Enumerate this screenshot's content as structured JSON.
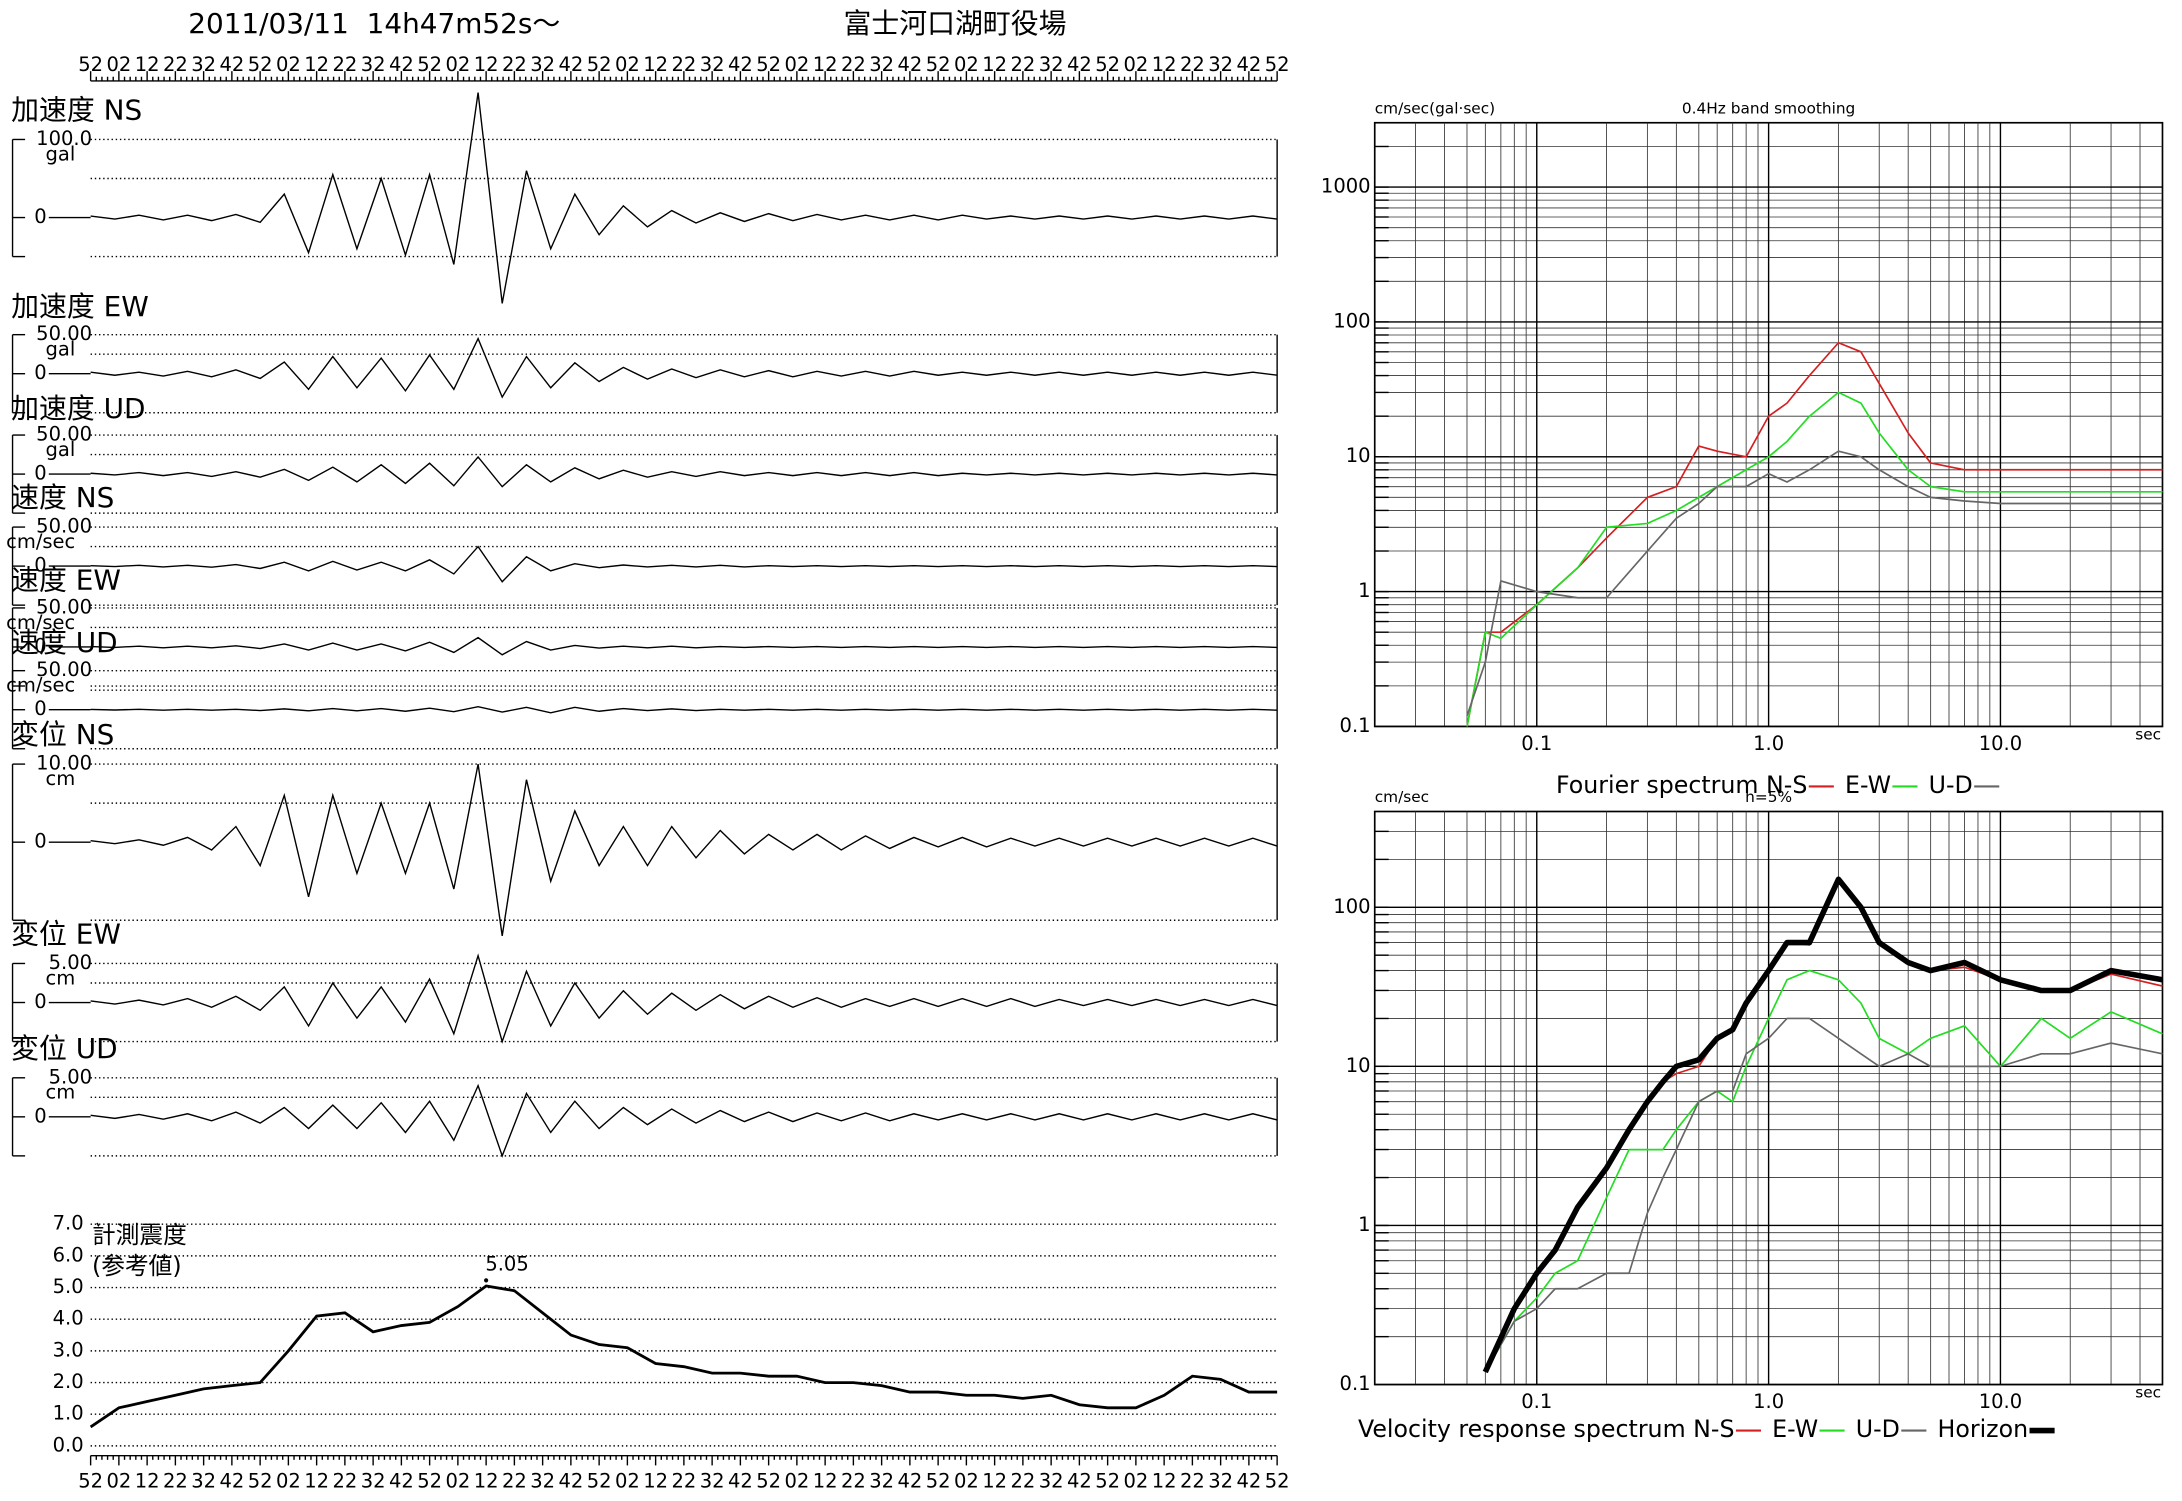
{
  "header": {
    "datetime": "2011/03/11  14h47m52s～",
    "station": "富士河口湖町役場"
  },
  "time_ticks": [
    "52",
    "02",
    "12",
    "22",
    "32",
    "42",
    "52",
    "02",
    "12",
    "22",
    "32",
    "42",
    "52",
    "02",
    "12",
    "22",
    "32",
    "42",
    "52",
    "02",
    "12",
    "22",
    "32",
    "42",
    "52",
    "02",
    "12",
    "22",
    "32",
    "42",
    "52",
    "02",
    "12",
    "22",
    "32",
    "42",
    "52",
    "02",
    "12",
    "22",
    "32",
    "42",
    "52"
  ],
  "traces": [
    {
      "label": "加速度 NS",
      "unit": "gal",
      "yticks": [
        0,
        {
          "value": 100,
          "label": "100.0"
        }
      ],
      "values": [
        2,
        -2,
        3,
        -3,
        3,
        -4,
        4,
        -6,
        30,
        -45,
        55,
        -40,
        50,
        -48,
        55,
        -60,
        160,
        -110,
        60,
        -40,
        30,
        -22,
        15,
        -12,
        9,
        -7,
        6,
        -5,
        5,
        -4,
        4,
        -3,
        3,
        -3,
        3,
        -3,
        3,
        -2,
        2,
        -2,
        2,
        -2,
        2,
        -2,
        2,
        -2,
        2,
        -2,
        2,
        -2
      ]
    },
    {
      "label": "加速度 EW",
      "unit": "gal",
      "yticks": [
        0,
        {
          "value": 50,
          "label": "50.00"
        }
      ],
      "values": [
        2,
        -2,
        2,
        -3,
        3,
        -4,
        5,
        -6,
        15,
        -20,
        22,
        -18,
        20,
        -22,
        24,
        -20,
        45,
        -30,
        22,
        -18,
        14,
        -10,
        8,
        -7,
        6,
        -5,
        5,
        -4,
        4,
        -4,
        3,
        -3,
        3,
        -3,
        3,
        -2,
        2,
        -2,
        2,
        -2,
        2,
        -2,
        2,
        -2,
        2,
        -2,
        2,
        -2,
        2,
        -2
      ]
    },
    {
      "label": "加速度 UD",
      "unit": "gal",
      "yticks": [
        0,
        {
          "value": 50,
          "label": "50.00"
        }
      ],
      "values": [
        1,
        -1,
        2,
        -2,
        2,
        -3,
        3,
        -4,
        6,
        -8,
        9,
        -10,
        12,
        -12,
        14,
        -15,
        22,
        -16,
        12,
        -10,
        8,
        -6,
        5,
        -4,
        3,
        -3,
        3,
        -2,
        2,
        -2,
        2,
        -2,
        2,
        -2,
        2,
        -2,
        1,
        -1,
        1,
        -1,
        1,
        -1,
        1,
        -1,
        1,
        -1,
        1,
        -1,
        1,
        -1
      ]
    },
    {
      "label": "速度 NS",
      "unit": "cm/sec",
      "yticks": [
        0,
        {
          "value": 50,
          "label": "50.00"
        }
      ],
      "values": [
        0.5,
        -0.5,
        1,
        -1,
        1,
        -1.5,
        2,
        -3,
        5,
        -6,
        6,
        -5,
        5,
        -6,
        8,
        -10,
        25,
        -20,
        12,
        -6,
        3,
        -2,
        1.5,
        -1,
        1,
        -1,
        1,
        -1,
        0.5,
        -0.5,
        0.5,
        -0.5,
        0.5,
        -0.5,
        0.5,
        -0.5,
        0.5,
        -0.5,
        0.5,
        -0.5,
        0.5,
        -0.5,
        0.5,
        -0.5,
        0.5,
        -0.5,
        0.5,
        -0.5,
        0.5,
        -0.5
      ]
    },
    {
      "label": "速度 EW",
      "unit": "cm/sec",
      "yticks": [
        0,
        {
          "value": 50,
          "label": "50.00"
        }
      ],
      "values": [
        0.5,
        -0.5,
        1,
        -1,
        1,
        -1,
        1.5,
        -2,
        4,
        -4,
        5,
        -4,
        4,
        -5,
        6,
        -7,
        12,
        -10,
        7,
        -4,
        2,
        -1.5,
        1,
        -1,
        1,
        -1,
        0.5,
        -0.5,
        0.5,
        -0.5,
        0.5,
        -0.5,
        0.5,
        -0.5,
        0.5,
        -0.5,
        0.5,
        -0.5,
        0.5,
        -0.5,
        0.5,
        -0.5,
        0.5,
        -0.5,
        0.5,
        -0.5,
        0.5,
        -0.5,
        0.5,
        -0.5
      ]
    },
    {
      "label": "速度 UD",
      "unit": "cm/sec",
      "yticks": [
        0,
        {
          "value": 50,
          "label": "50.00"
        }
      ],
      "values": [
        0.3,
        -0.3,
        0.5,
        -0.5,
        0.5,
        -0.5,
        0.5,
        -1,
        1,
        -1.5,
        1.5,
        -1.5,
        1.5,
        -2,
        2,
        -2.5,
        4,
        -3,
        3,
        -4,
        3,
        -2,
        1.5,
        -1,
        1,
        -1,
        0.5,
        -0.5,
        0.5,
        -0.5,
        0.5,
        -0.5,
        0.5,
        -0.5,
        0.5,
        -0.5,
        0.5,
        -0.5,
        0.5,
        -0.5,
        0.5,
        -0.5,
        0.5,
        -0.5,
        0.5,
        -0.5,
        0.5,
        -0.5,
        0.5,
        -0.5
      ]
    },
    {
      "label": "変位 NS",
      "unit": "cm",
      "yticks": [
        0,
        {
          "value": 10,
          "label": "10.00"
        }
      ],
      "values": [
        0.2,
        -0.2,
        0.3,
        -0.4,
        0.6,
        -1,
        2,
        -3,
        6,
        -7,
        6,
        -4,
        5,
        -4,
        5,
        -6,
        10,
        -12,
        8,
        -5,
        4,
        -3,
        2,
        -3,
        2,
        -2,
        1.5,
        -1.5,
        1,
        -1,
        1,
        -1,
        0.8,
        -0.8,
        0.6,
        -0.6,
        0.6,
        -0.6,
        0.5,
        -0.5,
        0.5,
        -0.5,
        0.5,
        -0.5,
        0.5,
        -0.5,
        0.5,
        -0.5,
        0.5,
        -0.5
      ]
    },
    {
      "label": "変位 EW",
      "unit": "cm",
      "yticks": [
        0,
        {
          "value": 5,
          "label": "5.00"
        }
      ],
      "values": [
        0.2,
        -0.2,
        0.3,
        -0.3,
        0.5,
        -0.6,
        0.8,
        -1,
        2,
        -3,
        2.5,
        -2,
        2,
        -2.5,
        3,
        -4,
        6,
        -5,
        4,
        -3,
        2.5,
        -2,
        1.5,
        -1.5,
        1.2,
        -1,
        1,
        -0.8,
        0.8,
        -0.6,
        0.6,
        -0.6,
        0.5,
        -0.5,
        0.5,
        -0.5,
        0.5,
        -0.5,
        0.5,
        -0.5,
        0.4,
        -0.4,
        0.4,
        -0.4,
        0.4,
        -0.4,
        0.4,
        -0.4,
        0.4,
        -0.4
      ]
    },
    {
      "label": "変位 UD",
      "unit": "cm",
      "yticks": [
        0,
        {
          "value": 5,
          "label": "5.00"
        }
      ],
      "values": [
        0.2,
        -0.2,
        0.3,
        -0.3,
        0.4,
        -0.5,
        0.6,
        -0.8,
        1.2,
        -1.5,
        1.5,
        -1.5,
        1.8,
        -2,
        2,
        -3,
        4,
        -5,
        3,
        -2,
        2,
        -1.5,
        1.2,
        -1,
        1,
        -0.8,
        0.8,
        -0.6,
        0.6,
        -0.6,
        0.5,
        -0.5,
        0.5,
        -0.5,
        0.4,
        -0.4,
        0.4,
        -0.4,
        0.4,
        -0.4,
        0.4,
        -0.4,
        0.4,
        -0.4,
        0.4,
        -0.4,
        0.4,
        -0.4,
        0.4,
        -0.4
      ]
    }
  ],
  "chart_data": [
    {
      "type": "line",
      "title_lines": [
        "計測震度",
        "(参考値)"
      ],
      "color": "#000000",
      "ylim": [
        0,
        7
      ],
      "yticks": [
        {
          "value": 0,
          "label": "0.0"
        },
        {
          "value": 1,
          "label": "1.0"
        },
        {
          "value": 2,
          "label": "2.0"
        },
        {
          "value": 3,
          "label": "3.0"
        },
        {
          "value": 4,
          "label": "4.0"
        },
        {
          "value": 5,
          "label": "5.0"
        },
        {
          "value": 6,
          "label": "6.0"
        },
        {
          "value": 7,
          "label": "7.0"
        }
      ],
      "values": [
        0.6,
        1.2,
        1.4,
        1.6,
        1.8,
        1.9,
        2.0,
        3.0,
        4.1,
        4.2,
        3.6,
        3.8,
        3.9,
        4.4,
        5.05,
        4.9,
        4.2,
        3.5,
        3.2,
        3.1,
        2.6,
        2.5,
        2.3,
        2.3,
        2.2,
        2.2,
        2.0,
        2.0,
        1.9,
        1.7,
        1.7,
        1.6,
        1.6,
        1.5,
        1.6,
        1.3,
        1.2,
        1.2,
        1.6,
        2.2,
        2.1,
        1.7,
        1.7
      ],
      "labeled_point": 14
    },
    {
      "type": "loglog",
      "title": "0.4Hz band smoothing",
      "ylabel": "cm/sec(gal·sec)",
      "xlabel": "sec",
      "legend_title": "Fourier spectrum ",
      "xlim": [
        0.02,
        50
      ],
      "ylim": [
        0.1,
        3000
      ],
      "xticks": [
        0.1,
        {
          "value": 1,
          "label": "1.0"
        },
        {
          "value": 10,
          "label": "10.0"
        }
      ],
      "yticks": [
        0.1,
        1,
        10,
        100,
        1000
      ],
      "x": [
        0.05,
        0.06,
        0.07,
        0.1,
        0.15,
        0.2,
        0.3,
        0.4,
        0.5,
        0.6,
        0.8,
        1.0,
        1.2,
        1.5,
        2.0,
        2.5,
        3,
        4,
        5,
        7,
        10,
        20,
        50
      ],
      "series": [
        {
          "name": "N-S",
          "color": "#d42020",
          "linewidth": 1.2,
          "values": [
            0.1,
            0.5,
            0.5,
            0.8,
            1.5,
            2.5,
            5,
            6,
            12,
            11,
            10,
            20,
            25,
            40,
            70,
            60,
            35,
            15,
            9,
            8,
            8,
            8,
            8
          ]
        },
        {
          "name": "E-W",
          "color": "#22dd22",
          "linewidth": 1.2,
          "values": [
            0.1,
            0.5,
            0.45,
            0.8,
            1.5,
            3,
            3.2,
            4,
            5,
            6,
            8,
            10,
            13,
            20,
            30,
            25,
            15,
            8,
            6,
            5.5,
            5.5,
            5.5,
            5.5
          ]
        },
        {
          "name": "U-D",
          "color": "#666666",
          "linewidth": 1.2,
          "values": [
            0.12,
            0.3,
            1.2,
            1,
            0.9,
            0.9,
            2,
            3.5,
            4.5,
            6,
            6,
            7.5,
            6.5,
            8,
            11,
            10,
            8,
            6,
            5,
            4.7,
            4.5,
            4.5,
            4.5
          ]
        }
      ]
    },
    {
      "type": "loglog",
      "title": "h=5%",
      "ylabel": "cm/sec",
      "xlabel": "sec",
      "legend_title": "Velocity response spectrum ",
      "xlim": [
        0.02,
        50
      ],
      "ylim": [
        0.1,
        400
      ],
      "xticks": [
        0.1,
        {
          "value": 1,
          "label": "1.0"
        },
        {
          "value": 10,
          "label": "10.0"
        }
      ],
      "yticks": [
        0.1,
        1,
        10,
        100
      ],
      "x": [
        0.06,
        0.08,
        0.1,
        0.12,
        0.15,
        0.2,
        0.25,
        0.3,
        0.35,
        0.4,
        0.5,
        0.6,
        0.7,
        0.8,
        1.0,
        1.2,
        1.5,
        2.0,
        2.5,
        3,
        4,
        5,
        7,
        10,
        15,
        20,
        30,
        50
      ],
      "series": [
        {
          "name": "N-S",
          "color": "#d42020",
          "linewidth": 1.2,
          "values": [
            0.12,
            0.3,
            0.5,
            0.7,
            1.3,
            2.3,
            4,
            6,
            8,
            9,
            10,
            15,
            17,
            25,
            40,
            60,
            58,
            150,
            100,
            60,
            45,
            40,
            42,
            35,
            30,
            30,
            38,
            32
          ]
        },
        {
          "name": "E-W",
          "color": "#22dd22",
          "linewidth": 1.2,
          "values": [
            0.12,
            0.25,
            0.35,
            0.5,
            0.6,
            1.5,
            3,
            3,
            3,
            4,
            6,
            7,
            6,
            10,
            20,
            35,
            40,
            35,
            25,
            15,
            12,
            15,
            18,
            10,
            20,
            15,
            22,
            16
          ]
        },
        {
          "name": "U-D",
          "color": "#666666",
          "linewidth": 1.2,
          "values": [
            0.12,
            0.25,
            0.3,
            0.4,
            0.4,
            0.5,
            0.5,
            1.2,
            2,
            3,
            6,
            7,
            7,
            12,
            15,
            20,
            20,
            15,
            12,
            10,
            12,
            10,
            10,
            10,
            12,
            12,
            14,
            12
          ]
        },
        {
          "name": "Horizon",
          "color": "#000000",
          "linewidth": 4,
          "values": [
            0.12,
            0.3,
            0.5,
            0.7,
            1.3,
            2.3,
            4,
            6,
            8,
            10,
            11,
            15,
            17,
            25,
            40,
            60,
            60,
            150,
            100,
            60,
            45,
            40,
            45,
            35,
            30,
            30,
            40,
            35
          ]
        }
      ]
    }
  ]
}
